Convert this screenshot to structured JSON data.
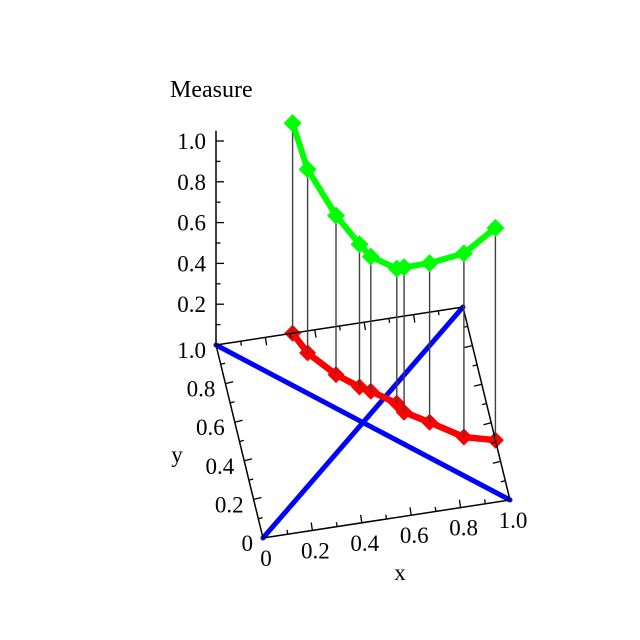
{
  "figure_title": "Measure",
  "colors": {
    "background": "#ffffff",
    "measure_curve": "#00ff00",
    "base_projection_curve": "#ff0000",
    "diagonals": "#0000ff",
    "axes": "#000000",
    "drop_lines": "#404040",
    "text": "#000000"
  },
  "chart_data": {
    "type": "line",
    "subtype": "3d-curve-with-base-projection-and-drop-lines",
    "title": "Measure",
    "xlabel": "x",
    "ylabel": "y",
    "zlabel": "Measure",
    "grid": false,
    "legend": null,
    "axes": {
      "x": {
        "label": "x",
        "range": [
          0,
          1
        ],
        "major_ticks": [
          0,
          0.2,
          0.4,
          0.6,
          0.8,
          1.0
        ],
        "tick_labels": [
          "0",
          "0.2",
          "0.4",
          "0.6",
          "0.8",
          "1.0"
        ],
        "minor_tick_step": 0.1
      },
      "y": {
        "label": "y",
        "range": [
          0,
          1
        ],
        "major_ticks": [
          0,
          0.2,
          0.4,
          0.6,
          0.8,
          1.0
        ],
        "tick_labels": [
          "0",
          "0.2",
          "0.4",
          "0.6",
          "0.8",
          "1.0"
        ],
        "minor_tick_step": 0.1
      },
      "z": {
        "label": "Measure",
        "range": [
          0,
          1.05
        ],
        "major_ticks": [
          0.2,
          0.4,
          0.6,
          0.8,
          1.0
        ],
        "tick_labels": [
          "0.2",
          "0.4",
          "0.6",
          "0.8",
          "1.0"
        ],
        "minor_tick_step": 0.1
      }
    },
    "series": [
      {
        "name": "measure-curve",
        "color": "#00ff00",
        "marker": "diamond",
        "points_xyz": [
          [
            0.31,
            1.0,
            1.03
          ],
          [
            0.35,
            0.89,
            0.9
          ],
          [
            0.44,
            0.76,
            0.78
          ],
          [
            0.52,
            0.68,
            0.7
          ],
          [
            0.56,
            0.65,
            0.66
          ],
          [
            0.65,
            0.57,
            0.66
          ],
          [
            0.67,
            0.52,
            0.71
          ],
          [
            0.76,
            0.45,
            0.78
          ],
          [
            0.88,
            0.35,
            0.9
          ],
          [
            1.0,
            0.31,
            1.04
          ]
        ]
      },
      {
        "name": "base-projection",
        "color": "#ff0000",
        "marker": "diamond",
        "points_xyz": [
          [
            0.31,
            1.0,
            0
          ],
          [
            0.35,
            0.89,
            0
          ],
          [
            0.44,
            0.76,
            0
          ],
          [
            0.52,
            0.68,
            0
          ],
          [
            0.56,
            0.65,
            0
          ],
          [
            0.65,
            0.57,
            0
          ],
          [
            0.67,
            0.52,
            0
          ],
          [
            0.76,
            0.45,
            0
          ],
          [
            0.88,
            0.35,
            0
          ],
          [
            1.0,
            0.31,
            0
          ]
        ]
      },
      {
        "name": "unit-square-diagonal-1",
        "color": "#0000ff",
        "marker": null,
        "points_xyz": [
          [
            0,
            0,
            0
          ],
          [
            1,
            1,
            0
          ]
        ]
      },
      {
        "name": "unit-square-diagonal-2",
        "color": "#0000ff",
        "marker": null,
        "points_xyz": [
          [
            0,
            1,
            0
          ],
          [
            1,
            0,
            0
          ]
        ]
      }
    ],
    "drop_lines": {
      "enabled": true,
      "color": "#404040",
      "from_series": "measure-curve",
      "to_series": "base-projection"
    }
  }
}
